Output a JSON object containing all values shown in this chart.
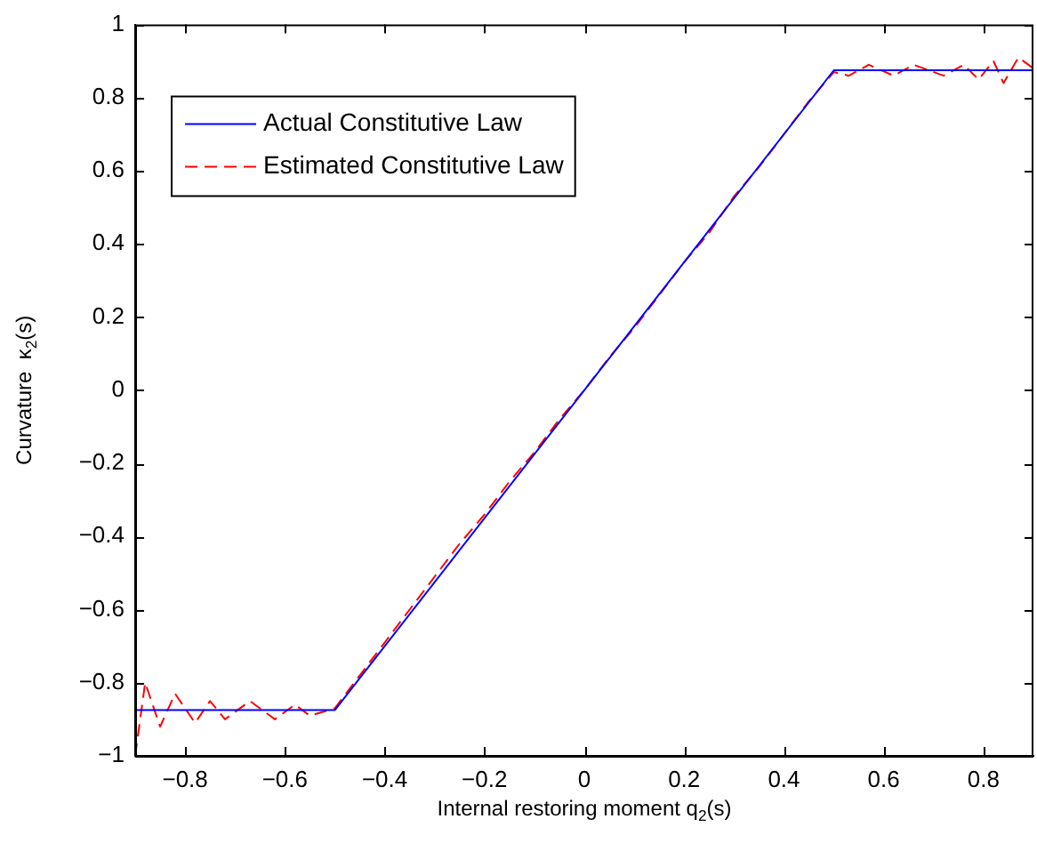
{
  "chart_data": {
    "type": "line",
    "xlabel": "Internal restoring moment q$_{2}$(s)",
    "ylabel": "Curvature  κ$_{2}$(s)",
    "xlim": [
      -0.9,
      0.9
    ],
    "xticks": [
      -0.8,
      -0.6,
      -0.4,
      -0.2,
      0,
      0.2,
      0.4,
      0.6,
      0.8
    ],
    "ylim": [
      -1,
      1
    ],
    "yticks": [
      -1,
      -0.8,
      -0.6,
      -0.4,
      -0.2,
      0,
      0.2,
      0.4,
      0.6,
      0.8,
      1
    ],
    "grid": false,
    "legend": "top left",
    "marker": "none",
    "series": [
      {
        "name": "Actual Constitutive Law",
        "color": "#0000ff",
        "line_style": "solid",
        "x": [
          -0.9,
          -0.5,
          0.5,
          0.9
        ],
        "values": [
          -0.875,
          -0.875,
          0.875,
          0.875
        ]
      },
      {
        "name": "Estimated Constitutive Law",
        "color": "#ff0000",
        "line_style": "dashed",
        "x": [
          -0.9,
          -0.88,
          -0.85,
          -0.82,
          -0.78,
          -0.75,
          -0.72,
          -0.67,
          -0.62,
          -0.58,
          -0.55,
          -0.5,
          -0.45,
          -0.4,
          -0.35,
          -0.3,
          -0.25,
          -0.2,
          -0.15,
          -0.1,
          -0.05,
          0,
          0.05,
          0.1,
          0.15,
          0.2,
          0.25,
          0.3,
          0.35,
          0.4,
          0.45,
          0.5,
          0.53,
          0.57,
          0.62,
          0.66,
          0.72,
          0.76,
          0.79,
          0.82,
          0.84,
          0.87,
          0.9
        ],
        "values": [
          -1,
          -0.8,
          -0.92,
          -0.83,
          -0.91,
          -0.85,
          -0.9,
          -0.85,
          -0.9,
          -0.86,
          -0.89,
          -0.87,
          -0.78,
          -0.69,
          -0.6,
          -0.51,
          -0.42,
          -0.34,
          -0.25,
          -0.17,
          -0.08,
          0,
          0.09,
          0.17,
          0.26,
          0.35,
          0.43,
          0.53,
          0.61,
          0.7,
          0.79,
          0.87,
          0.86,
          0.89,
          0.86,
          0.89,
          0.86,
          0.89,
          0.85,
          0.9,
          0.84,
          0.91,
          0.88
        ]
      }
    ]
  }
}
